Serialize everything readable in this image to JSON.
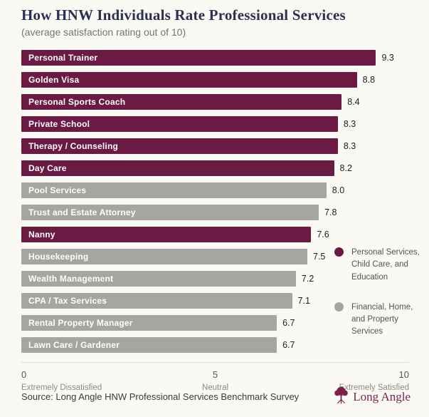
{
  "header": {
    "title": "How HNW Individuals Rate Professional Services",
    "subtitle": "(average satisfaction rating out of 10)"
  },
  "chart_data": {
    "type": "bar",
    "orientation": "horizontal",
    "title": "How HNW Individuals Rate Professional Services",
    "subtitle": "(average satisfaction rating out of 10)",
    "xlim": [
      0,
      10
    ],
    "grid": false,
    "legend_position": "right",
    "categories": [
      "Personal Trainer",
      "Golden Visa",
      "Personal Sports Coach",
      "Private School",
      "Therapy / Counseling",
      "Day Care",
      "Pool Services",
      "Trust and Estate Attorney",
      "Nanny",
      "Housekeeping",
      "Wealth Management",
      "CPA / Tax Services",
      "Rental Property Manager",
      "Lawn Care / Gardener"
    ],
    "values": [
      9.3,
      8.8,
      8.4,
      8.3,
      8.3,
      8.2,
      8.0,
      7.8,
      7.6,
      7.5,
      7.2,
      7.1,
      6.7,
      6.7
    ],
    "item_groups": [
      "personal",
      "personal",
      "personal",
      "personal",
      "personal",
      "personal",
      "financial",
      "financial",
      "personal",
      "financial",
      "financial",
      "financial",
      "financial",
      "financial"
    ],
    "groups": {
      "personal": {
        "label": "Personal Services, Child Care, and Education",
        "color": "#6b1a44"
      },
      "financial": {
        "label": "Financial, Home, and Property Services",
        "color": "#a6a5a1"
      }
    },
    "legend_order": [
      "personal",
      "financial"
    ],
    "axis_ticks": [
      {
        "value": "0",
        "label": "Extremely Dissatisfied",
        "align": "left"
      },
      {
        "value": "5",
        "label": "Neutral",
        "align": "center"
      },
      {
        "value": "10",
        "label": "Extremely Satisfied",
        "align": "right"
      }
    ]
  },
  "footer": {
    "source": "Source: Long Angle HNW Professional Services Benchmark Survey",
    "brand_name": "Long Angle"
  },
  "colors": {
    "background": "#faf9f4",
    "title": "#2b3150",
    "subtitle": "#76756f",
    "bar_personal": "#6b1a44",
    "bar_financial": "#a6a5a1",
    "bar_label": "#ffffff",
    "value_text": "#1f1f1f",
    "axis_line": "#dddcd4",
    "brand": "#7b2150"
  }
}
